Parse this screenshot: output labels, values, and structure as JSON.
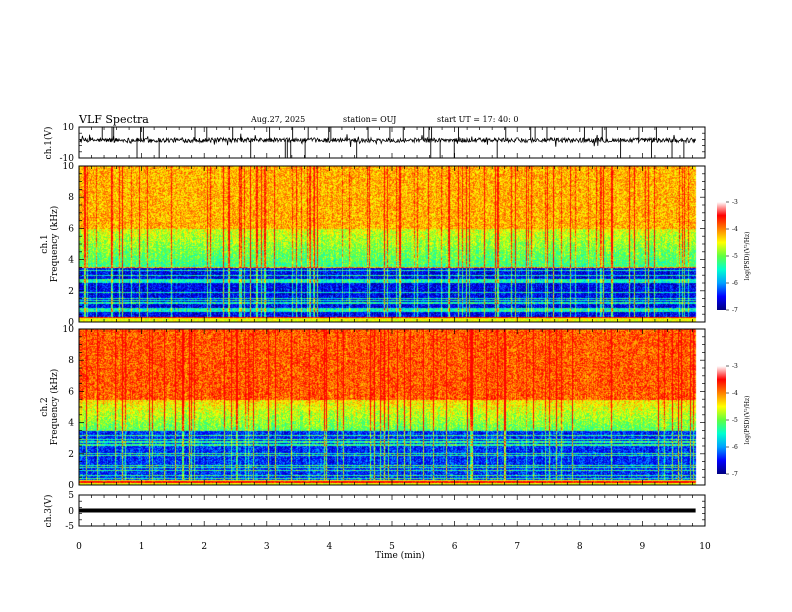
{
  "header": {
    "title": "VLF Spectra",
    "date": "Aug.27, 2025",
    "station": "station= OUJ",
    "start": "start  UT  =   17: 40: 0"
  },
  "chart_data": [
    {
      "type": "line",
      "panel": "ch1-waveform",
      "ylabel": "ch.1(V)",
      "ylim": [
        -10,
        10
      ],
      "y_ticks": [
        "10",
        "-10"
      ],
      "baseline": 1.5
    },
    {
      "type": "heatmap",
      "panel": "ch1-spectrogram",
      "ylabel": [
        "ch.1",
        "Frequency  (kHz)"
      ],
      "ylim": [
        0,
        10
      ],
      "y_ticks": [
        "0",
        "2",
        "4",
        "6",
        "8",
        "10"
      ],
      "colorbar": {
        "label": "log(PSD)(V²/Hz)",
        "range": [
          -7,
          -3
        ],
        "ticks": [
          "-3",
          "-4",
          "-5",
          "-6",
          "-7"
        ]
      },
      "description_levels": {
        "low_freq_0_to_3.5kHz": -6.5,
        "mid_3.5_to_6kHz": -5,
        "high_6_to_10kHz": -3.8
      }
    },
    {
      "type": "heatmap",
      "panel": "ch2-spectrogram",
      "ylabel": [
        "ch.2",
        "Frequency  (kHz)"
      ],
      "ylim": [
        0,
        10
      ],
      "y_ticks": [
        "0",
        "2",
        "4",
        "6",
        "8",
        "10"
      ],
      "colorbar": {
        "label": "log(PSD)(V²/Hz)",
        "range": [
          -7,
          -3
        ],
        "ticks": [
          "-3",
          "-4",
          "-5",
          "-6",
          "-7"
        ]
      },
      "description_levels": {
        "low_freq_0_to_3.5kHz": -6.3,
        "mid_3.5_to_5.5kHz": -4.8,
        "high_5.5_to_10kHz": -3.4
      }
    },
    {
      "type": "line",
      "panel": "ch3-waveform",
      "ylabel": "ch.3(V)",
      "ylim": [
        -5,
        5
      ],
      "y_ticks": [
        "5",
        "0",
        "-5"
      ],
      "values_constant": 0
    }
  ],
  "x_axis": {
    "label": "Time  (min)",
    "range": [
      0,
      10
    ],
    "ticks": [
      "0",
      "1",
      "2",
      "3",
      "4",
      "5",
      "6",
      "7",
      "8",
      "9",
      "10"
    ],
    "data_end": 9.85
  },
  "colors": {
    "colormap": [
      "#000080",
      "#0000ff",
      "#00a0ff",
      "#00ffd0",
      "#60ff40",
      "#ffff00",
      "#ff8000",
      "#ff0000",
      "#ffffff"
    ]
  }
}
